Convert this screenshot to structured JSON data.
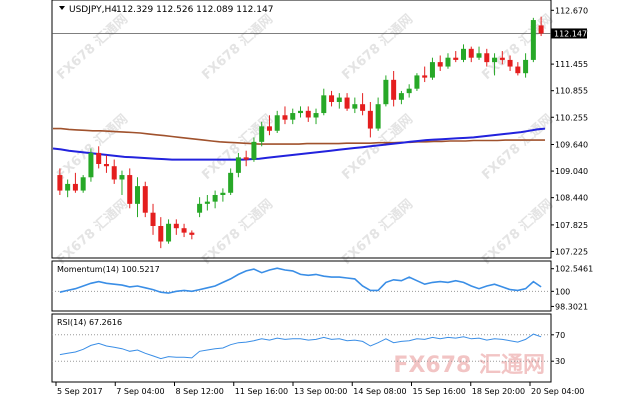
{
  "colors": {
    "bull": "#27a827",
    "bear": "#e41e1e",
    "ma_slow": "#a0522d",
    "ma_fast": "#2222dd",
    "momentum": "#3a8ee6",
    "rsi": "#3a8ee6",
    "frame": "#000000",
    "dotted": "#9a9a9a"
  },
  "watermark": "FX678 汇通网",
  "chart_data": [
    {
      "type": "candlestick",
      "title": "USDJPY,H4",
      "ohlc_readout": "112.329 112.526 112.089 112.147",
      "last_price_label": "112.147",
      "y_ticks": [
        "112.670",
        "112.147",
        "111.455",
        "110.855",
        "110.255",
        "109.640",
        "109.040",
        "108.440",
        "107.825",
        "107.225"
      ],
      "ylim": [
        107.1,
        112.88
      ],
      "x_tick_labels": [
        "5 Sep 2017",
        "7 Sep 04:00",
        "8 Sep 12:00",
        "11 Sep 16:00",
        "13 Sep 00:00",
        "14 Sep 08:00",
        "15 Sep 16:00",
        "18 Sep 20:00",
        "20 Sep 04:00"
      ],
      "candles": [
        {
          "o": 108.95,
          "h": 109.1,
          "l": 108.5,
          "c": 108.6
        },
        {
          "o": 108.6,
          "h": 108.85,
          "l": 108.45,
          "c": 108.75
        },
        {
          "o": 108.75,
          "h": 109.0,
          "l": 108.55,
          "c": 108.6
        },
        {
          "o": 108.6,
          "h": 108.95,
          "l": 108.55,
          "c": 108.9
        },
        {
          "o": 108.9,
          "h": 109.55,
          "l": 108.8,
          "c": 109.45
        },
        {
          "o": 109.45,
          "h": 109.6,
          "l": 109.1,
          "c": 109.2
        },
        {
          "o": 109.2,
          "h": 109.4,
          "l": 109.0,
          "c": 109.15
        },
        {
          "o": 109.15,
          "h": 109.3,
          "l": 108.75,
          "c": 108.85
        },
        {
          "o": 108.85,
          "h": 109.05,
          "l": 108.5,
          "c": 108.95
        },
        {
          "o": 108.95,
          "h": 109.1,
          "l": 108.2,
          "c": 108.3
        },
        {
          "o": 108.3,
          "h": 108.9,
          "l": 108.0,
          "c": 108.7
        },
        {
          "o": 108.7,
          "h": 108.8,
          "l": 108.0,
          "c": 108.1
        },
        {
          "o": 108.1,
          "h": 108.3,
          "l": 107.6,
          "c": 107.8
        },
        {
          "o": 107.8,
          "h": 108.0,
          "l": 107.3,
          "c": 107.45
        },
        {
          "o": 107.45,
          "h": 107.95,
          "l": 107.4,
          "c": 107.85
        },
        {
          "o": 107.85,
          "h": 107.95,
          "l": 107.6,
          "c": 107.75
        },
        {
          "o": 107.75,
          "h": 107.85,
          "l": 107.55,
          "c": 107.65
        },
        {
          "o": 107.65,
          "h": 107.7,
          "l": 107.5,
          "c": 107.6
        },
        {
          "o": 108.1,
          "h": 108.45,
          "l": 108.0,
          "c": 108.3
        },
        {
          "o": 108.3,
          "h": 108.5,
          "l": 108.15,
          "c": 108.35
        },
        {
          "o": 108.35,
          "h": 108.6,
          "l": 108.2,
          "c": 108.5
        },
        {
          "o": 108.5,
          "h": 108.65,
          "l": 108.35,
          "c": 108.55
        },
        {
          "o": 108.55,
          "h": 109.1,
          "l": 108.5,
          "c": 109.0
        },
        {
          "o": 109.0,
          "h": 109.45,
          "l": 108.9,
          "c": 109.35
        },
        {
          "o": 109.35,
          "h": 109.5,
          "l": 109.15,
          "c": 109.3
        },
        {
          "o": 109.3,
          "h": 109.8,
          "l": 109.25,
          "c": 109.7
        },
        {
          "o": 109.7,
          "h": 110.15,
          "l": 109.6,
          "c": 110.05
        },
        {
          "o": 110.05,
          "h": 110.3,
          "l": 109.85,
          "c": 109.95
        },
        {
          "o": 109.95,
          "h": 110.4,
          "l": 109.9,
          "c": 110.3
        },
        {
          "o": 110.3,
          "h": 110.5,
          "l": 110.1,
          "c": 110.2
        },
        {
          "o": 110.2,
          "h": 110.45,
          "l": 110.1,
          "c": 110.35
        },
        {
          "o": 110.35,
          "h": 110.5,
          "l": 110.25,
          "c": 110.4
        },
        {
          "o": 110.4,
          "h": 110.5,
          "l": 110.15,
          "c": 110.25
        },
        {
          "o": 110.25,
          "h": 110.45,
          "l": 110.1,
          "c": 110.35
        },
        {
          "o": 110.35,
          "h": 110.9,
          "l": 110.3,
          "c": 110.75
        },
        {
          "o": 110.75,
          "h": 110.85,
          "l": 110.5,
          "c": 110.6
        },
        {
          "o": 110.6,
          "h": 110.8,
          "l": 110.45,
          "c": 110.7
        },
        {
          "o": 110.7,
          "h": 110.8,
          "l": 110.4,
          "c": 110.45
        },
        {
          "o": 110.45,
          "h": 110.7,
          "l": 110.35,
          "c": 110.55
        },
        {
          "o": 110.55,
          "h": 110.8,
          "l": 110.3,
          "c": 110.4
        },
        {
          "o": 110.4,
          "h": 110.6,
          "l": 109.8,
          "c": 110.0
        },
        {
          "o": 110.0,
          "h": 110.7,
          "l": 109.95,
          "c": 110.55
        },
        {
          "o": 110.55,
          "h": 111.2,
          "l": 110.5,
          "c": 111.1
        },
        {
          "o": 111.1,
          "h": 111.3,
          "l": 110.5,
          "c": 110.65
        },
        {
          "o": 110.65,
          "h": 110.85,
          "l": 110.55,
          "c": 110.8
        },
        {
          "o": 110.8,
          "h": 111.0,
          "l": 110.7,
          "c": 110.9
        },
        {
          "o": 110.9,
          "h": 111.25,
          "l": 110.85,
          "c": 111.2
        },
        {
          "o": 111.2,
          "h": 111.4,
          "l": 111.05,
          "c": 111.15
        },
        {
          "o": 111.15,
          "h": 111.6,
          "l": 111.1,
          "c": 111.5
        },
        {
          "o": 111.5,
          "h": 111.65,
          "l": 111.3,
          "c": 111.4
        },
        {
          "o": 111.4,
          "h": 111.7,
          "l": 111.35,
          "c": 111.6
        },
        {
          "o": 111.6,
          "h": 111.75,
          "l": 111.5,
          "c": 111.55
        },
        {
          "o": 111.55,
          "h": 111.9,
          "l": 111.5,
          "c": 111.8
        },
        {
          "o": 111.8,
          "h": 111.85,
          "l": 111.5,
          "c": 111.6
        },
        {
          "o": 111.6,
          "h": 111.85,
          "l": 111.55,
          "c": 111.7
        },
        {
          "o": 111.7,
          "h": 111.8,
          "l": 111.4,
          "c": 111.5
        },
        {
          "o": 111.5,
          "h": 111.7,
          "l": 111.2,
          "c": 111.6
        },
        {
          "o": 111.6,
          "h": 111.75,
          "l": 111.45,
          "c": 111.55
        },
        {
          "o": 111.55,
          "h": 111.65,
          "l": 111.3,
          "c": 111.4
        },
        {
          "o": 111.4,
          "h": 111.5,
          "l": 111.2,
          "c": 111.25
        },
        {
          "o": 111.25,
          "h": 111.7,
          "l": 111.15,
          "c": 111.55
        },
        {
          "o": 111.55,
          "h": 112.5,
          "l": 111.5,
          "c": 112.45
        },
        {
          "o": 112.329,
          "h": 112.526,
          "l": 112.089,
          "c": 112.147
        }
      ],
      "series": [
        {
          "values": [
            110.0,
            110.0,
            109.98,
            109.97,
            109.96,
            109.95,
            109.95,
            109.94,
            109.93,
            109.92,
            109.91,
            109.9,
            109.88,
            109.86,
            109.84,
            109.82,
            109.8,
            109.78,
            109.76,
            109.74,
            109.72,
            109.7,
            109.69,
            109.68,
            109.67,
            109.66,
            109.65,
            109.65,
            109.65,
            109.65,
            109.65,
            109.65,
            109.66,
            109.66,
            109.66,
            109.66,
            109.66,
            109.67,
            109.67,
            109.67,
            109.67,
            109.68,
            109.68,
            109.68,
            109.69,
            109.69,
            109.7,
            109.7,
            109.71,
            109.71,
            109.72,
            109.72,
            109.72,
            109.73,
            109.73,
            109.73,
            109.73,
            109.74,
            109.74,
            109.74,
            109.74,
            109.74,
            109.74
          ]
        },
        {
          "values": [
            109.55,
            109.53,
            109.5,
            109.48,
            109.46,
            109.44,
            109.42,
            109.4,
            109.38,
            109.36,
            109.35,
            109.34,
            109.33,
            109.32,
            109.31,
            109.3,
            109.3,
            109.3,
            109.3,
            109.3,
            109.3,
            109.3,
            109.3,
            109.3,
            109.3,
            109.31,
            109.32,
            109.34,
            109.36,
            109.38,
            109.4,
            109.42,
            109.44,
            109.46,
            109.48,
            109.5,
            109.52,
            109.54,
            109.56,
            109.58,
            109.6,
            109.62,
            109.64,
            109.66,
            109.68,
            109.7,
            109.72,
            109.74,
            109.75,
            109.76,
            109.77,
            109.78,
            109.79,
            109.8,
            109.82,
            109.84,
            109.86,
            109.88,
            109.9,
            109.92,
            109.95,
            109.98,
            110.0
          ]
        }
      ]
    },
    {
      "type": "line",
      "title": "Momentum(14) 100.5217",
      "y_ticks": [
        "102.5461",
        "100",
        "98.3021"
      ],
      "ylim": [
        97.9,
        103.3
      ],
      "series": [
        {
          "values": [
            99.9,
            100.1,
            100.3,
            100.6,
            100.9,
            101.1,
            100.9,
            100.8,
            100.7,
            100.5,
            100.6,
            100.4,
            100.2,
            99.9,
            99.8,
            100.0,
            100.1,
            100.0,
            100.2,
            100.4,
            100.6,
            101.0,
            101.4,
            101.9,
            102.3,
            102.5,
            102.1,
            102.4,
            102.6,
            102.4,
            102.3,
            101.9,
            101.8,
            101.9,
            101.7,
            101.6,
            101.6,
            101.5,
            101.4,
            100.6,
            100.1,
            100.1,
            101.0,
            101.3,
            101.2,
            101.6,
            101.2,
            100.8,
            101.0,
            101.1,
            101.0,
            101.2,
            101.0,
            100.6,
            100.3,
            100.6,
            100.8,
            100.5,
            100.2,
            100.1,
            100.3,
            101.1,
            100.5
          ]
        }
      ]
    },
    {
      "type": "line",
      "title": "RSI(14) 67.2616",
      "y_ticks": [
        "70",
        "30"
      ],
      "ylim": [
        0,
        100
      ],
      "series": [
        {
          "values": [
            40,
            42,
            44,
            48,
            54,
            57,
            53,
            51,
            49,
            45,
            47,
            42,
            38,
            34,
            37,
            36,
            36,
            35,
            45,
            47,
            49,
            50,
            55,
            58,
            59,
            61,
            64,
            62,
            65,
            63,
            64,
            64,
            62,
            63,
            66,
            63,
            64,
            61,
            62,
            60,
            53,
            58,
            64,
            58,
            60,
            61,
            64,
            63,
            66,
            64,
            66,
            65,
            67,
            64,
            65,
            62,
            64,
            63,
            61,
            59,
            63,
            71,
            67
          ]
        }
      ]
    }
  ]
}
